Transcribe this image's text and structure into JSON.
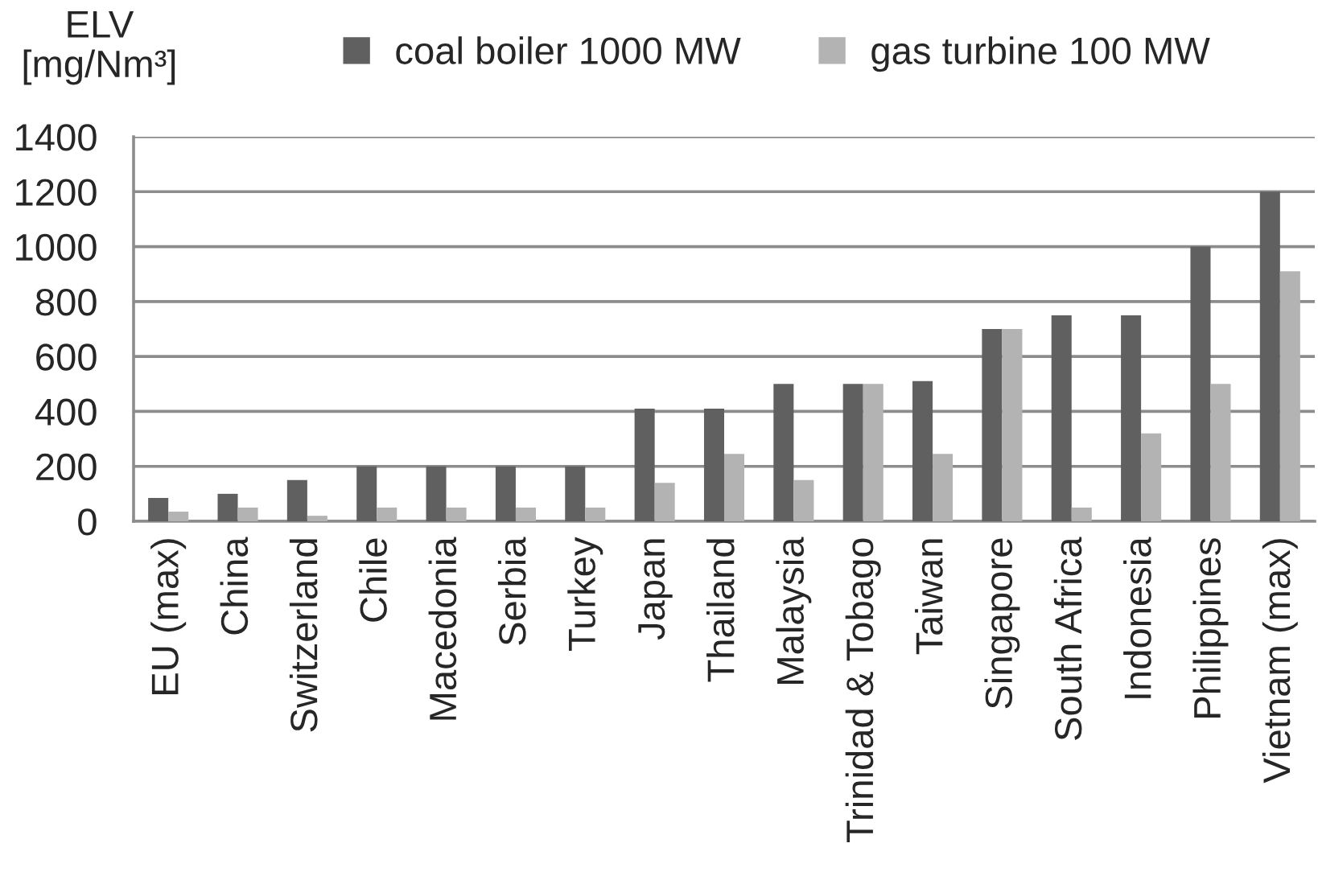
{
  "chart_data": {
    "type": "bar",
    "ylabel": "ELV\n[mg/Nm³]",
    "categories": [
      "EU (max)",
      "China",
      "Switzerland",
      "Chile",
      "Macedonia",
      "Serbia",
      "Turkey",
      "Japan",
      "Thailand",
      "Malaysia",
      "Trinidad & Tobago",
      "Taiwan",
      "Singapore",
      "South Africa",
      "Indonesia",
      "Philippines",
      "Vietnam (max)"
    ],
    "series": [
      {
        "name": "coal boiler 1000 MW",
        "color": "#606060",
        "values": [
          85,
          100,
          150,
          200,
          200,
          200,
          200,
          410,
          410,
          500,
          500,
          510,
          700,
          750,
          750,
          1000,
          1200
        ]
      },
      {
        "name": "gas turbine 100 MW",
        "color": "#b3b3b3",
        "values": [
          35,
          50,
          20,
          50,
          50,
          50,
          50,
          140,
          245,
          150,
          500,
          245,
          700,
          50,
          320,
          500,
          910
        ]
      }
    ],
    "ylim": [
      0,
      1400
    ],
    "yticks": [
      0,
      200,
      400,
      600,
      800,
      1000,
      1200,
      1400
    ],
    "grid": "y",
    "legend": "top"
  }
}
